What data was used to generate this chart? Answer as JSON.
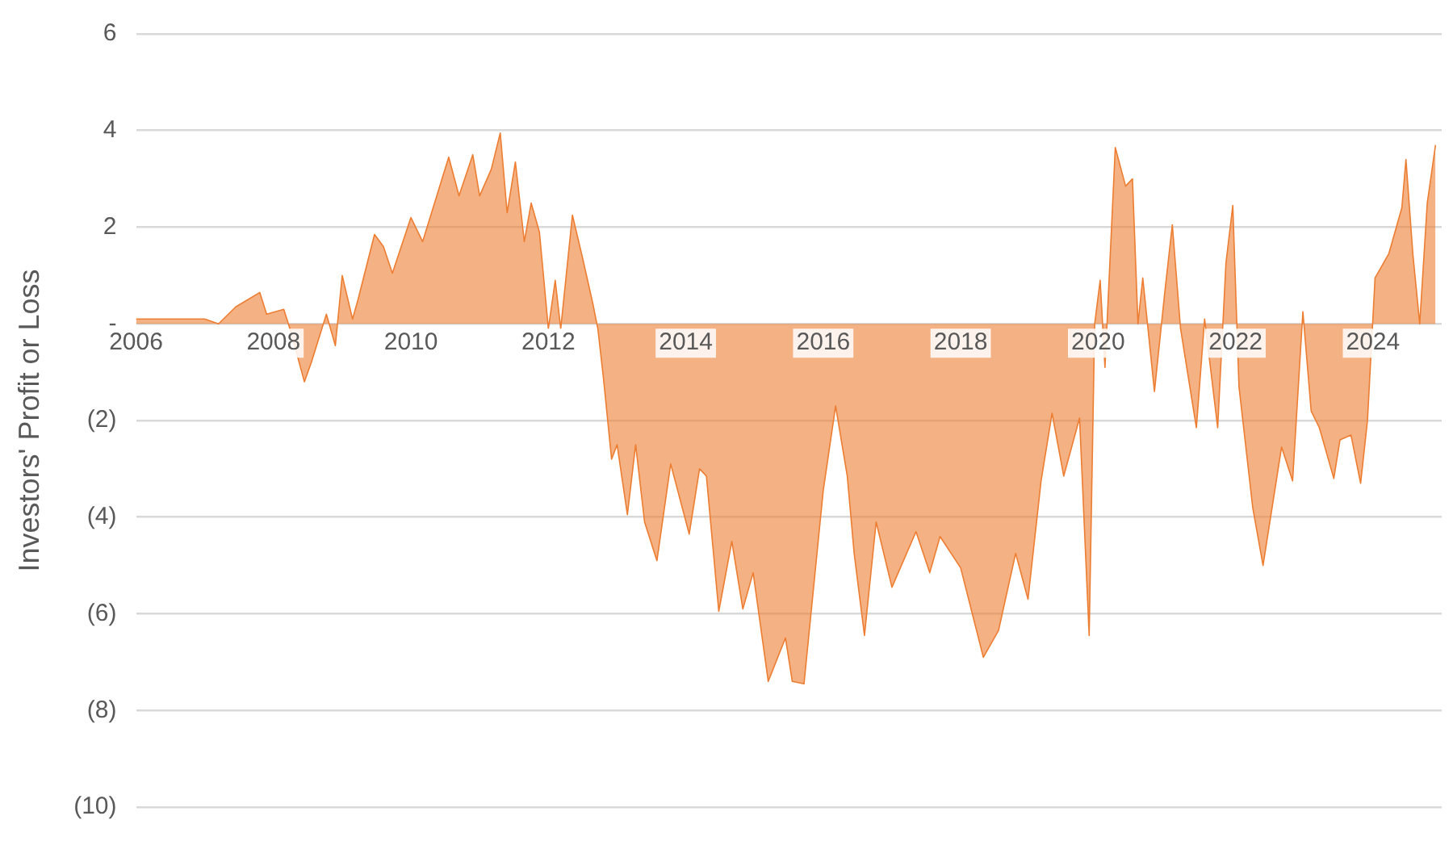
{
  "chart_data": {
    "type": "area",
    "ylabel": "Investors' Profit or Loss",
    "grid": "y",
    "legend": false,
    "xlim": [
      2006,
      2025
    ],
    "xticks": [
      2006,
      2008,
      2010,
      2012,
      2014,
      2016,
      2018,
      2020,
      2022,
      2024
    ],
    "ylim": [
      -10,
      6
    ],
    "yticks": [
      {
        "value": -10,
        "label": "(10)"
      },
      {
        "value": -8,
        "label": "(8)"
      },
      {
        "value": -6,
        "label": "(6)"
      },
      {
        "value": -4,
        "label": "(4)"
      },
      {
        "value": -2,
        "label": "(2)"
      },
      {
        "value": 0,
        "label": "-"
      },
      2,
      4,
      6
    ],
    "series": [
      {
        "color": "#ed7d31",
        "x": [
          2006.0,
          2007.0,
          2007.2,
          2007.45,
          2007.8,
          2007.9,
          2008.15,
          2008.25,
          2008.45,
          2008.55,
          2008.77,
          2008.9,
          2009.0,
          2009.15,
          2009.23,
          2009.47,
          2009.6,
          2009.73,
          2010.0,
          2010.17,
          2010.55,
          2010.7,
          2010.9,
          2011.0,
          2011.17,
          2011.3,
          2011.4,
          2011.52,
          2011.65,
          2011.75,
          2011.87,
          2012.0,
          2012.1,
          2012.18,
          2012.35,
          2012.5,
          2012.65,
          2012.72,
          2012.8,
          2012.92,
          2013.0,
          2013.15,
          2013.27,
          2013.4,
          2013.58,
          2013.78,
          2014.05,
          2014.2,
          2014.3,
          2014.48,
          2014.67,
          2014.83,
          2014.98,
          2015.2,
          2015.45,
          2015.55,
          2015.72,
          2016.0,
          2016.18,
          2016.35,
          2016.45,
          2016.6,
          2016.77,
          2017.0,
          2017.35,
          2017.55,
          2017.7,
          2018.0,
          2018.33,
          2018.55,
          2018.8,
          2018.98,
          2019.17,
          2019.33,
          2019.5,
          2019.73,
          2019.87,
          2019.95,
          2020.03,
          2020.1,
          2020.25,
          2020.4,
          2020.5,
          2020.58,
          2020.65,
          2020.82,
          2020.97,
          2021.08,
          2021.2,
          2021.43,
          2021.55,
          2021.74,
          2021.86,
          2021.96,
          2022.05,
          2022.25,
          2022.4,
          2022.67,
          2022.83,
          2022.98,
          2023.1,
          2023.22,
          2023.43,
          2023.52,
          2023.68,
          2023.82,
          2023.92,
          2024.03,
          2024.15,
          2024.23,
          2024.42,
          2024.48,
          2024.58,
          2024.68,
          2024.79,
          2024.91
        ],
        "values": [
          0.1,
          0.1,
          0,
          0.35,
          0.65,
          0.2,
          0.3,
          -0.15,
          -1.2,
          -0.8,
          0.2,
          -0.45,
          1.0,
          0.1,
          0.5,
          1.85,
          1.6,
          1.05,
          2.2,
          1.7,
          3.45,
          2.65,
          3.5,
          2.65,
          3.2,
          3.95,
          2.3,
          3.35,
          1.7,
          2.5,
          1.9,
          -0.1,
          0.9,
          -0.1,
          2.25,
          1.35,
          0.4,
          -0.1,
          -1.1,
          -2.8,
          -2.5,
          -3.95,
          -2.5,
          -4.1,
          -4.9,
          -2.9,
          -4.35,
          -3.0,
          -3.15,
          -5.95,
          -4.5,
          -5.9,
          -5.15,
          -7.4,
          -6.5,
          -7.4,
          -7.45,
          -3.45,
          -1.7,
          -3.15,
          -4.75,
          -6.45,
          -4.1,
          -5.45,
          -4.3,
          -5.15,
          -4.4,
          -5.05,
          -6.9,
          -6.35,
          -4.75,
          -5.7,
          -3.25,
          -1.85,
          -3.15,
          -1.95,
          -6.45,
          0,
          0.9,
          -0.9,
          3.65,
          2.85,
          3.0,
          0,
          0.95,
          -1.4,
          0.65,
          2.05,
          -0.1,
          -2.15,
          0.1,
          -2.15,
          1.25,
          2.45,
          -1.3,
          -3.8,
          -5.0,
          -2.55,
          -3.25,
          0.25,
          -1.8,
          -2.15,
          -3.2,
          -2.4,
          -2.3,
          -3.3,
          -2.0,
          0.95,
          null,
          1.45,
          2.4,
          3.4,
          1.45,
          0,
          2.5,
          3.7
        ]
      }
    ]
  }
}
